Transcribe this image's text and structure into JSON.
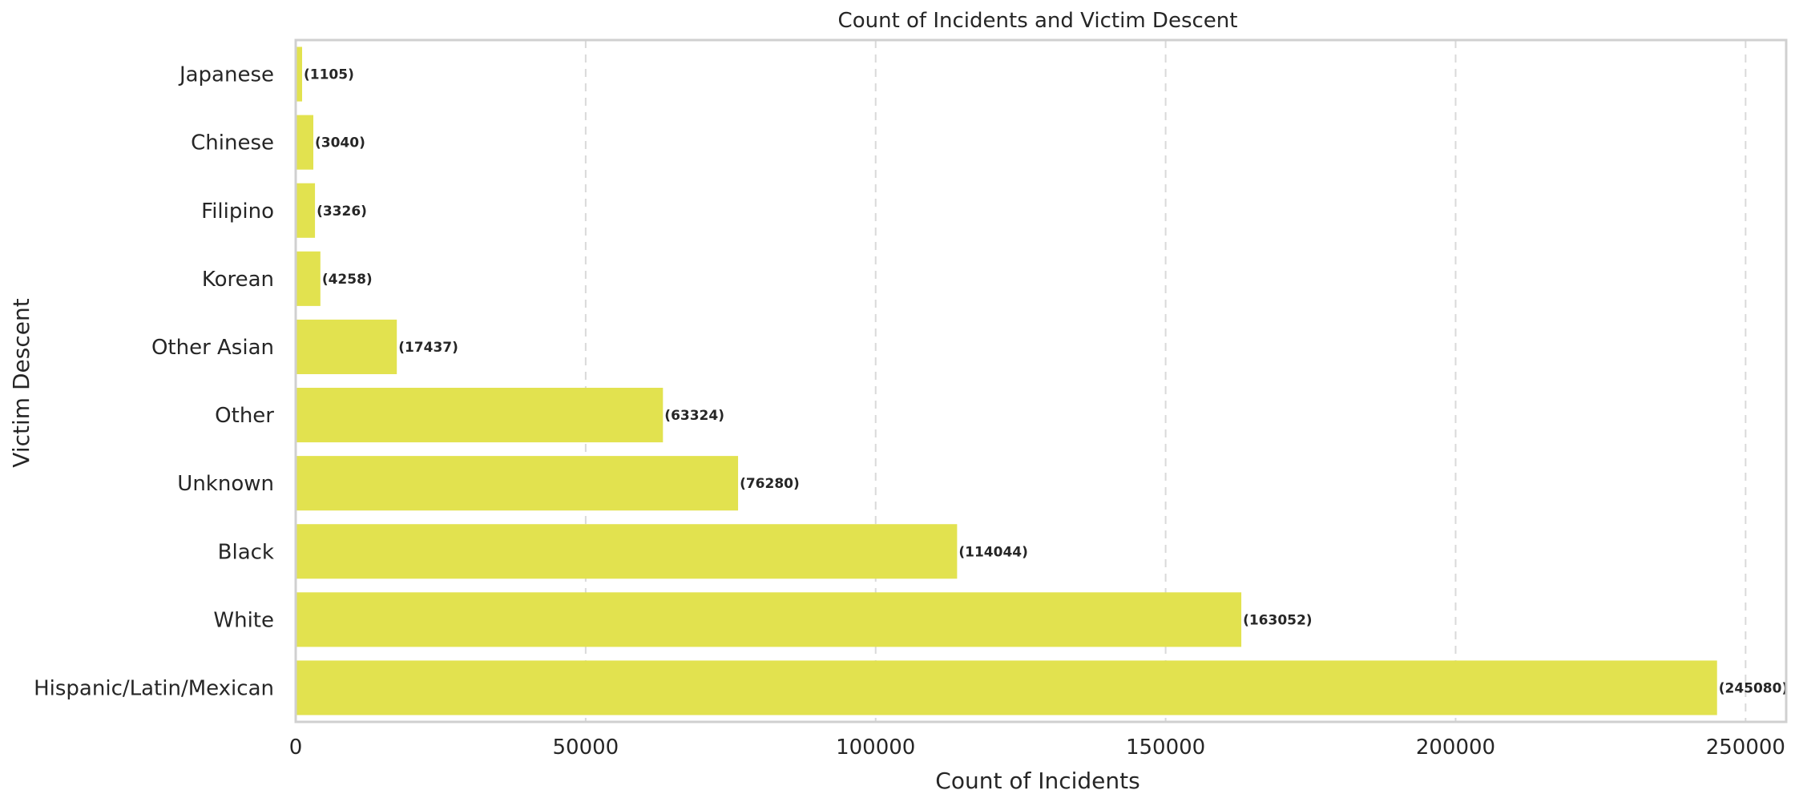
{
  "chart_data": {
    "type": "bar",
    "orientation": "horizontal",
    "title": "Count of Incidents and Victim Descent",
    "xlabel": "Count of Incidents",
    "ylabel": "Victim Descent",
    "categories": [
      "Japanese",
      "Chinese",
      "Filipino",
      "Korean",
      "Other Asian",
      "Other",
      "Unknown",
      "Black",
      "White",
      "Hispanic/Latin/Mexican"
    ],
    "values": [
      1105,
      3040,
      3326,
      4258,
      17437,
      63324,
      76280,
      114044,
      163052,
      245080
    ],
    "data_labels": [
      "(1105)",
      "(3040)",
      "(3326)",
      "(4258)",
      "(17437)",
      "(63324)",
      "(76280)",
      "(114044)",
      "(163052)",
      "(245080)"
    ],
    "xlim": [
      0,
      257000
    ],
    "xticks": [
      0,
      50000,
      100000,
      150000,
      200000,
      250000
    ],
    "xtick_labels": [
      "0",
      "50000",
      "100000",
      "150000",
      "200000",
      "250000"
    ],
    "grid": "x-dashed",
    "bar_color": "#e2e24f"
  }
}
